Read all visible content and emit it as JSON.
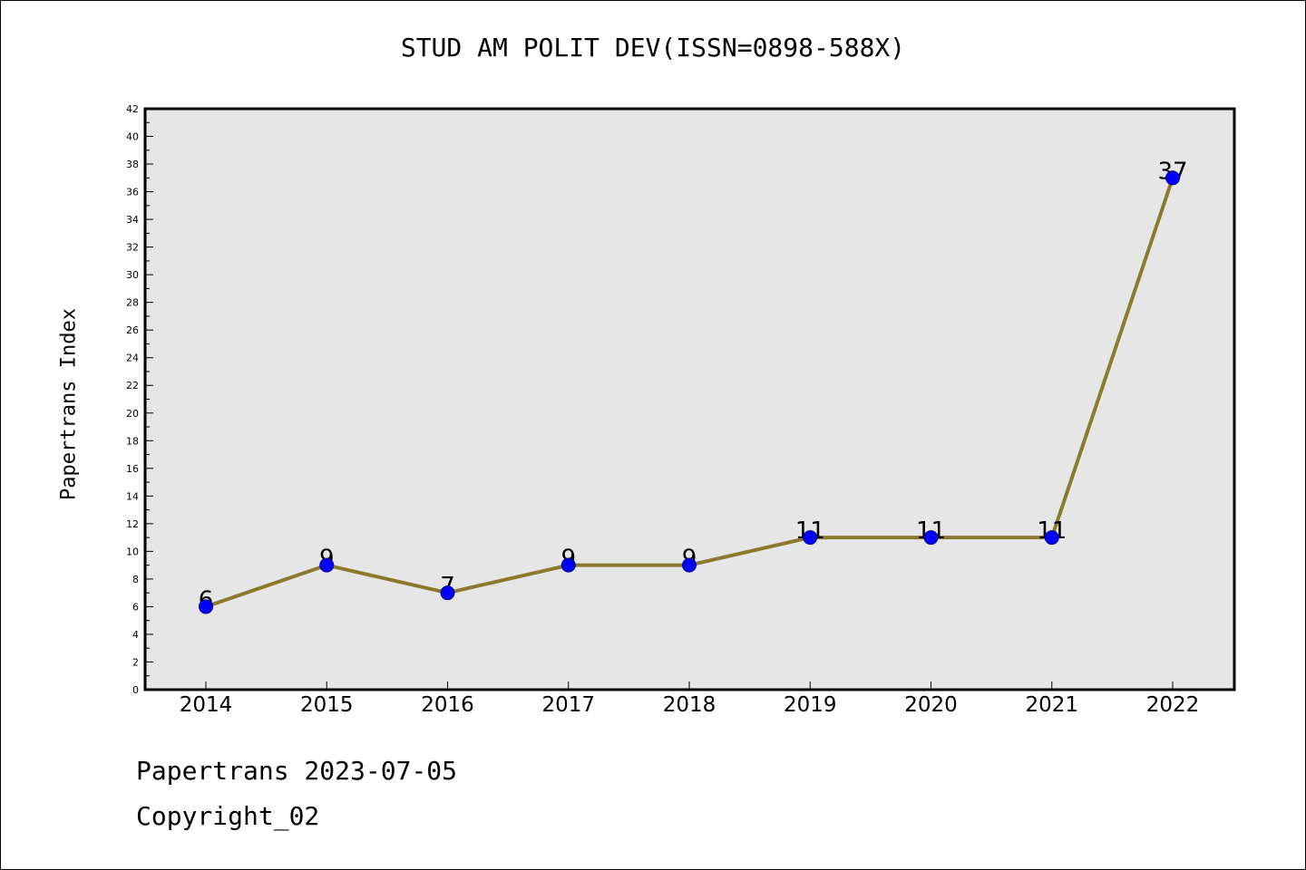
{
  "title": "STUD AM POLIT DEV(ISSN=0898-588X)",
  "ylabel": "Papertrans Index",
  "footer": {
    "date_line": "Papertrans 2023-07-05",
    "copyright_line": "Copyright_02"
  },
  "colors": {
    "plot_background": "#e6e6e6",
    "line": "#8b7a2e",
    "marker_fill": "#0000ff",
    "marker_stroke": "#00008b"
  },
  "chart_data": {
    "type": "line",
    "title": "STUD AM POLIT DEV(ISSN=0898-588X)",
    "xlabel": "",
    "ylabel": "Papertrans Index",
    "categories": [
      "2014",
      "2015",
      "2016",
      "2017",
      "2018",
      "2019",
      "2020",
      "2021",
      "2022"
    ],
    "series": [
      {
        "values": [
          6,
          9,
          7,
          9,
          9,
          11,
          11,
          11,
          37
        ],
        "data_labels": [
          "6",
          "9",
          "7",
          "9",
          "9",
          "11",
          "11",
          "11",
          "37"
        ]
      }
    ],
    "ylim": [
      0,
      42
    ],
    "y_major_ticks": [
      0,
      2,
      4,
      6,
      8,
      10,
      12,
      14,
      16,
      18,
      20,
      22,
      24,
      26,
      28,
      30,
      32,
      34,
      36,
      38,
      40,
      42
    ],
    "grid": false,
    "legend": "none"
  }
}
